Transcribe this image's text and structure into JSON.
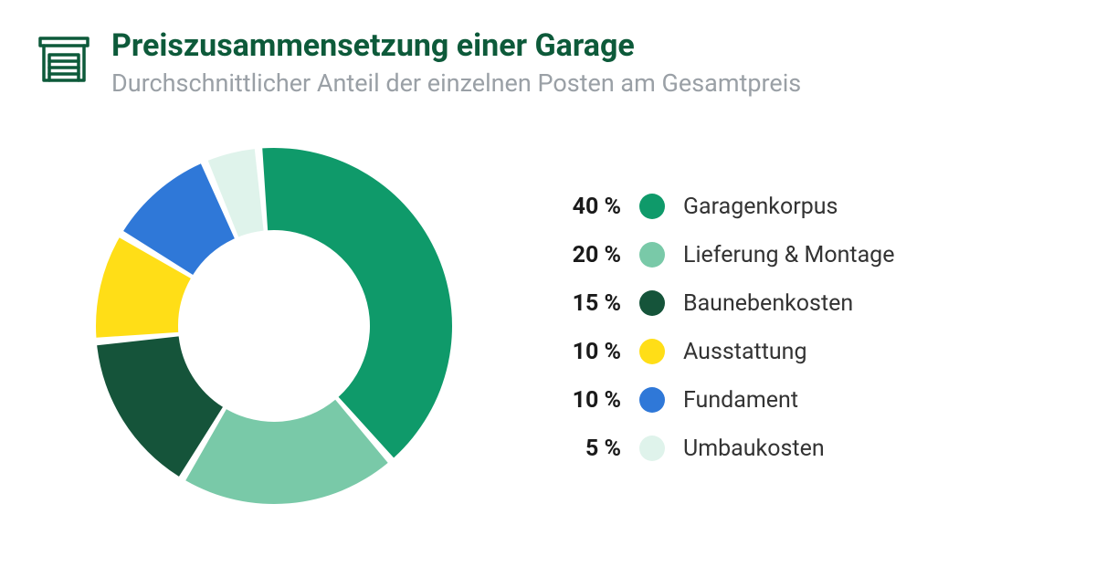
{
  "header": {
    "title": "Preiszusammensetzung einer Garage",
    "subtitle": "Durchschnittlicher Anteil der einzelnen Posten am Gesamtpreis",
    "title_color": "#0d5a3a",
    "subtitle_color": "#9aa0a6",
    "icon_color": "#0d5a3a"
  },
  "chart": {
    "type": "donut",
    "size": 400,
    "outer_radius": 195,
    "inner_radius": 105,
    "start_angle_deg": -5,
    "direction": "clockwise",
    "gap_deg": 2.5,
    "background_color": "#ffffff",
    "legend_text_color": "#333333",
    "legend_pct_color": "#1a1a1a",
    "slices": [
      {
        "label": "Garagenkorpus",
        "percent": 40,
        "pct_text": "40 %",
        "color": "#0f9a6a"
      },
      {
        "label": "Lieferung & Montage",
        "percent": 20,
        "pct_text": "20 %",
        "color": "#79c9a8"
      },
      {
        "label": "Baunebenkosten",
        "percent": 15,
        "pct_text": "15 %",
        "color": "#15543a"
      },
      {
        "label": "Ausstattung",
        "percent": 10,
        "pct_text": "10 %",
        "color": "#ffde17"
      },
      {
        "label": "Fundament",
        "percent": 10,
        "pct_text": "10 %",
        "color": "#2f78d8"
      },
      {
        "label": "Umbaukosten",
        "percent": 5,
        "pct_text": "5 %",
        "color": "#dff3eb"
      }
    ]
  }
}
